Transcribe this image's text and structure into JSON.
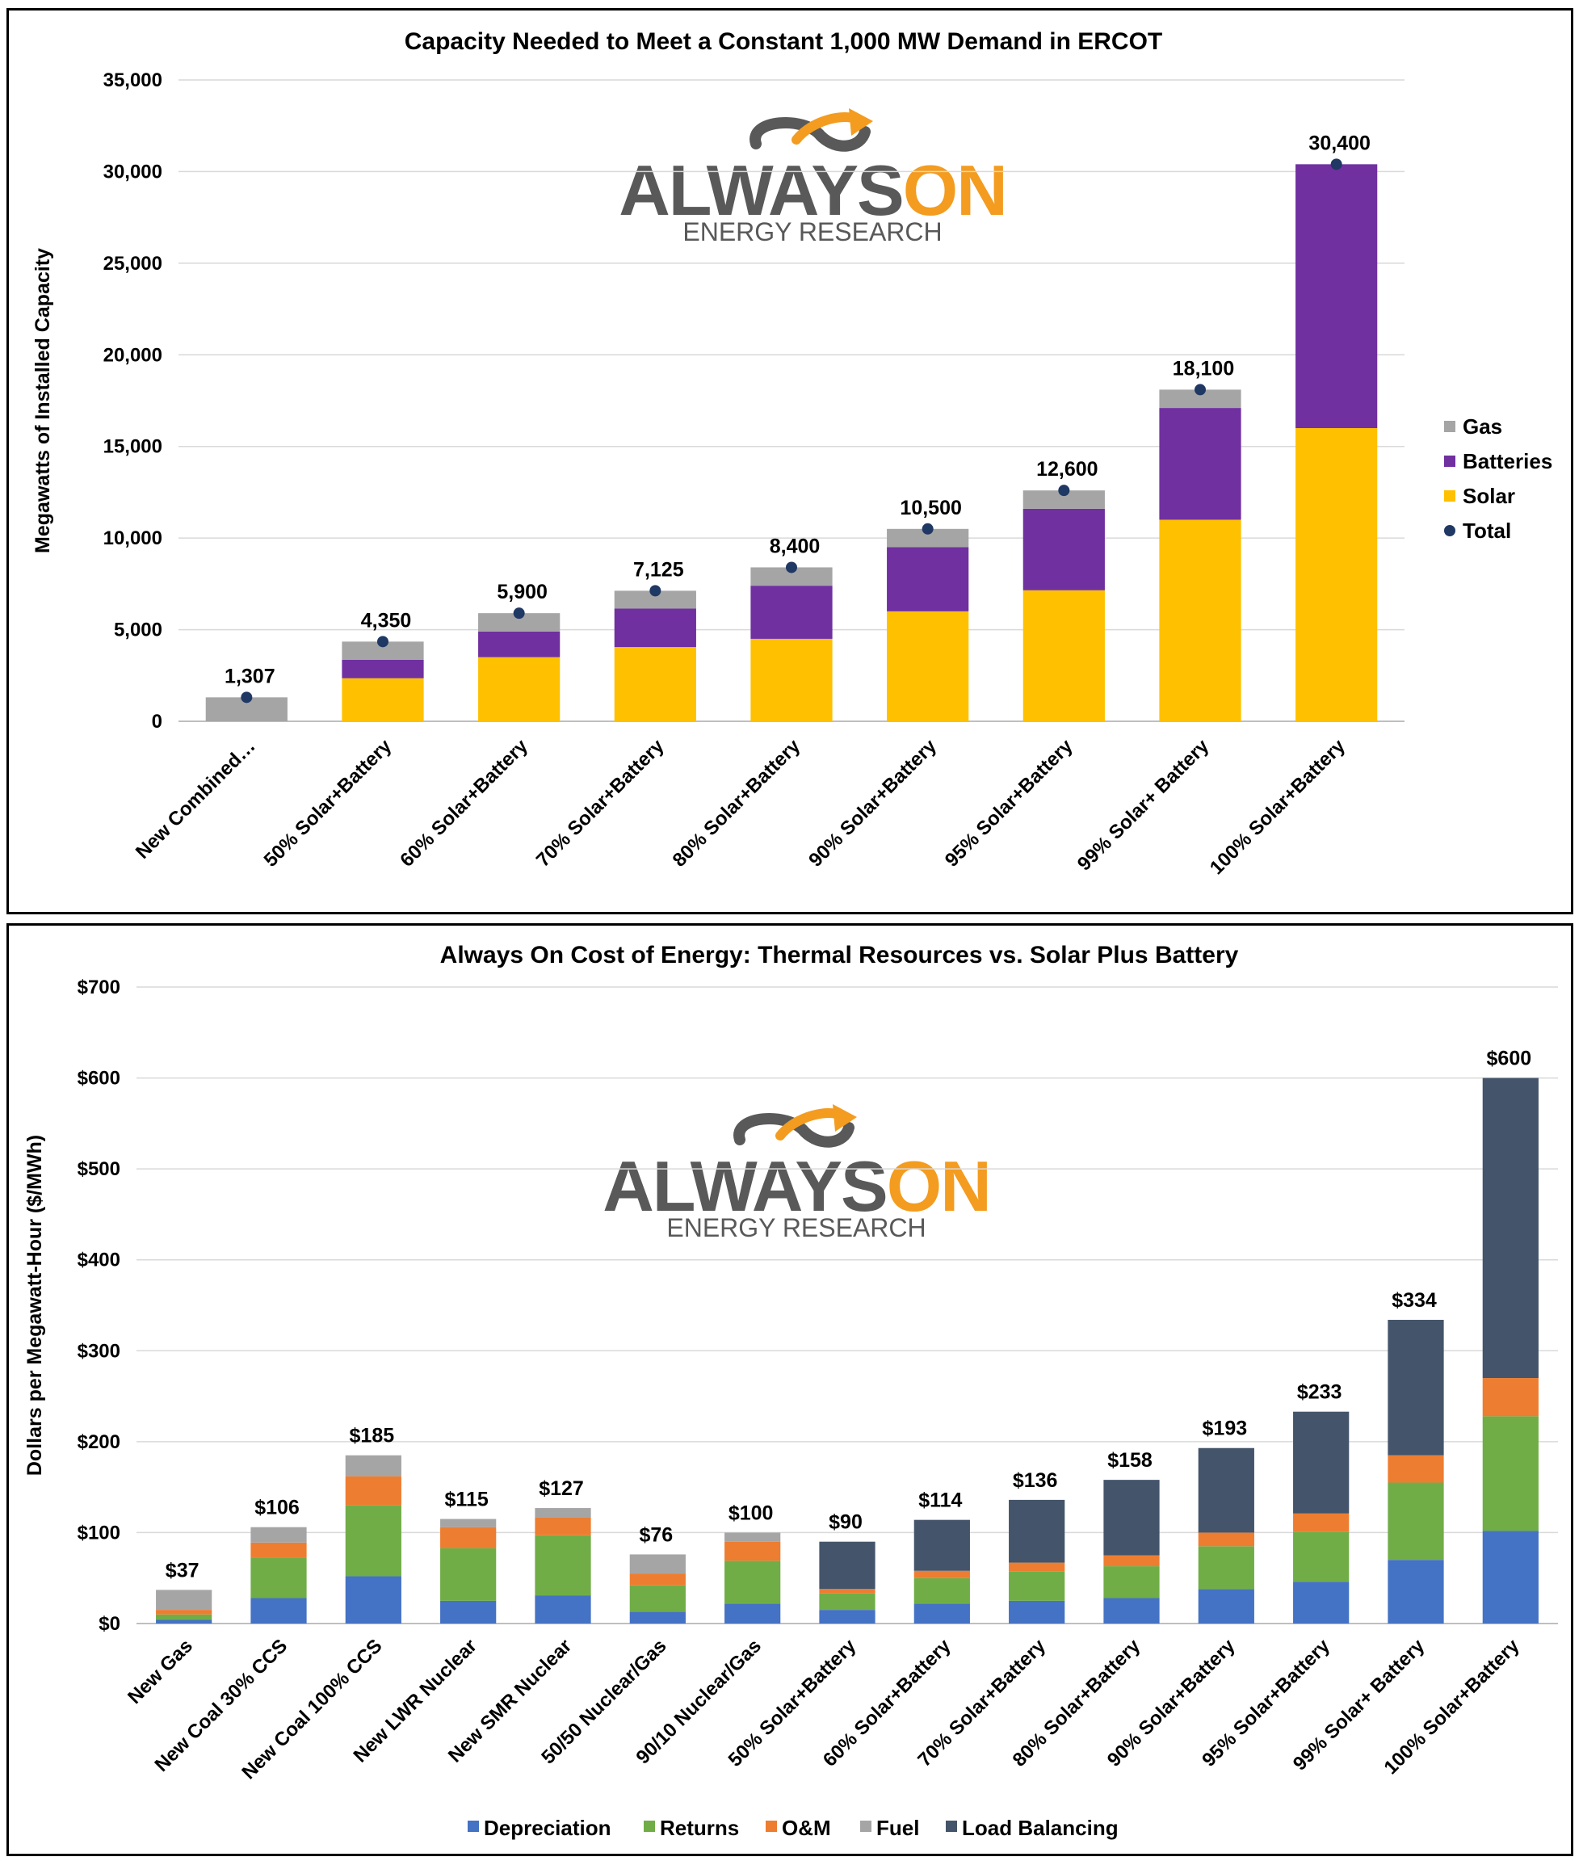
{
  "chart_data": [
    {
      "type": "bar",
      "stacked": true,
      "title": "Capacity Needed to Meet a Constant 1,000 MW Demand in ERCOT",
      "ylabel": "Megawatts of Installed Capacity",
      "ylim": [
        0,
        35000
      ],
      "yticks": [
        "0",
        "5,000",
        "10,000",
        "15,000",
        "20,000",
        "25,000",
        "30,000",
        "35,000"
      ],
      "ytick_values": [
        0,
        5000,
        10000,
        15000,
        20000,
        25000,
        30000,
        35000
      ],
      "legend_position": "right",
      "categories": [
        "New Combined…",
        "50% Solar+Battery",
        "60% Solar+Battery",
        "70% Solar+Battery",
        "80% Solar+Battery",
        "90% Solar+Battery",
        "95% Solar+Battery",
        "99% Solar+ Battery",
        "100% Solar+Battery"
      ],
      "series": [
        {
          "name": "Solar",
          "color": "#ffc000",
          "values": [
            0,
            2350,
            3500,
            4050,
            4500,
            6000,
            7150,
            11000,
            16000
          ]
        },
        {
          "name": "Batteries",
          "color": "#7030a0",
          "values": [
            0,
            1000,
            1400,
            2100,
            2900,
            3500,
            4450,
            6100,
            14400
          ]
        },
        {
          "name": "Gas",
          "color": "#a5a5a5",
          "values": [
            1307,
            1000,
            1000,
            975,
            1000,
            1000,
            1000,
            1000,
            0
          ]
        }
      ],
      "totals": [
        1307,
        4350,
        5900,
        7125,
        8400,
        10500,
        12600,
        18100,
        30400
      ],
      "total_labels": [
        "1,307",
        "4,350",
        "5,900",
        "7,125",
        "8,400",
        "10,500",
        "12,600",
        "18,100",
        "30,400"
      ],
      "legend": [
        {
          "label": "Gas",
          "color": "#a5a5a5",
          "marker": "square"
        },
        {
          "label": "Batteries",
          "color": "#7030a0",
          "marker": "square"
        },
        {
          "label": "Solar",
          "color": "#ffc000",
          "marker": "square"
        },
        {
          "label": "Total",
          "color": "#1f3864",
          "marker": "dot"
        }
      ]
    },
    {
      "type": "bar",
      "stacked": true,
      "title": "Always On Cost of Energy: Thermal Resources vs. Solar Plus Battery",
      "ylabel": "Dollars per Megawatt-Hour ($/MWh)",
      "ylim": [
        0,
        700
      ],
      "yticks": [
        "$0",
        "$100",
        "$200",
        "$300",
        "$400",
        "$500",
        "$600",
        "$700"
      ],
      "ytick_values": [
        0,
        100,
        200,
        300,
        400,
        500,
        600,
        700
      ],
      "legend_position": "bottom",
      "categories": [
        "New Gas",
        "New Coal 30% CCS",
        "New Coal 100% CCS",
        "New LWR Nuclear",
        "New SMR Nuclear",
        "50/50 Nuclear/Gas",
        "90/10 Nuclear/Gas",
        "50% Solar+Battery",
        "60% Solar+Battery",
        "70% Solar+Battery",
        "80% Solar+Battery",
        "90% Solar+Battery",
        "95% Solar+Battery",
        "99% Solar+ Battery",
        "100% Solar+Battery"
      ],
      "series": [
        {
          "name": "Depreciation",
          "color": "#4472c4",
          "values": [
            4,
            28,
            52,
            25,
            31,
            13,
            22,
            15,
            22,
            25,
            28,
            38,
            46,
            70,
            102
          ]
        },
        {
          "name": "Returns",
          "color": "#70ad47",
          "values": [
            6,
            44,
            78,
            58,
            66,
            29,
            47,
            18,
            28,
            32,
            35,
            47,
            55,
            85,
            126
          ]
        },
        {
          "name": "O&M",
          "color": "#ed7d31",
          "values": [
            5,
            17,
            32,
            23,
            20,
            13,
            21,
            5,
            8,
            10,
            12,
            15,
            20,
            30,
            42
          ]
        },
        {
          "name": "Fuel",
          "color": "#a5a5a5",
          "values": [
            22,
            17,
            23,
            9,
            10,
            21,
            10,
            0,
            0,
            0,
            0,
            0,
            0,
            0,
            0
          ]
        },
        {
          "name": "Load Balancing",
          "color": "#44546a",
          "values": [
            0,
            0,
            0,
            0,
            0,
            0,
            0,
            52,
            56,
            69,
            83,
            93,
            112,
            149,
            330
          ]
        }
      ],
      "totals": [
        37,
        106,
        185,
        115,
        127,
        76,
        100,
        90,
        114,
        136,
        158,
        193,
        233,
        334,
        600
      ],
      "total_labels": [
        "$37",
        "$106",
        "$185",
        "$115",
        "$127",
        "$76",
        "$100",
        "$90",
        "$114",
        "$136",
        "$158",
        "$193",
        "$233",
        "$334",
        "$600"
      ],
      "legend": [
        {
          "label": "Depreciation",
          "color": "#4472c4"
        },
        {
          "label": "Returns",
          "color": "#70ad47"
        },
        {
          "label": "O&M",
          "color": "#ed7d31"
        },
        {
          "label": "Fuel",
          "color": "#a5a5a5"
        },
        {
          "label": "Load Balancing",
          "color": "#44546a"
        }
      ]
    }
  ],
  "logo": {
    "word_left": "ALWAYS",
    "word_right": "ON",
    "subtitle": "ENERGY RESEARCH",
    "gray": "#595959",
    "orange": "#f39c1f"
  }
}
